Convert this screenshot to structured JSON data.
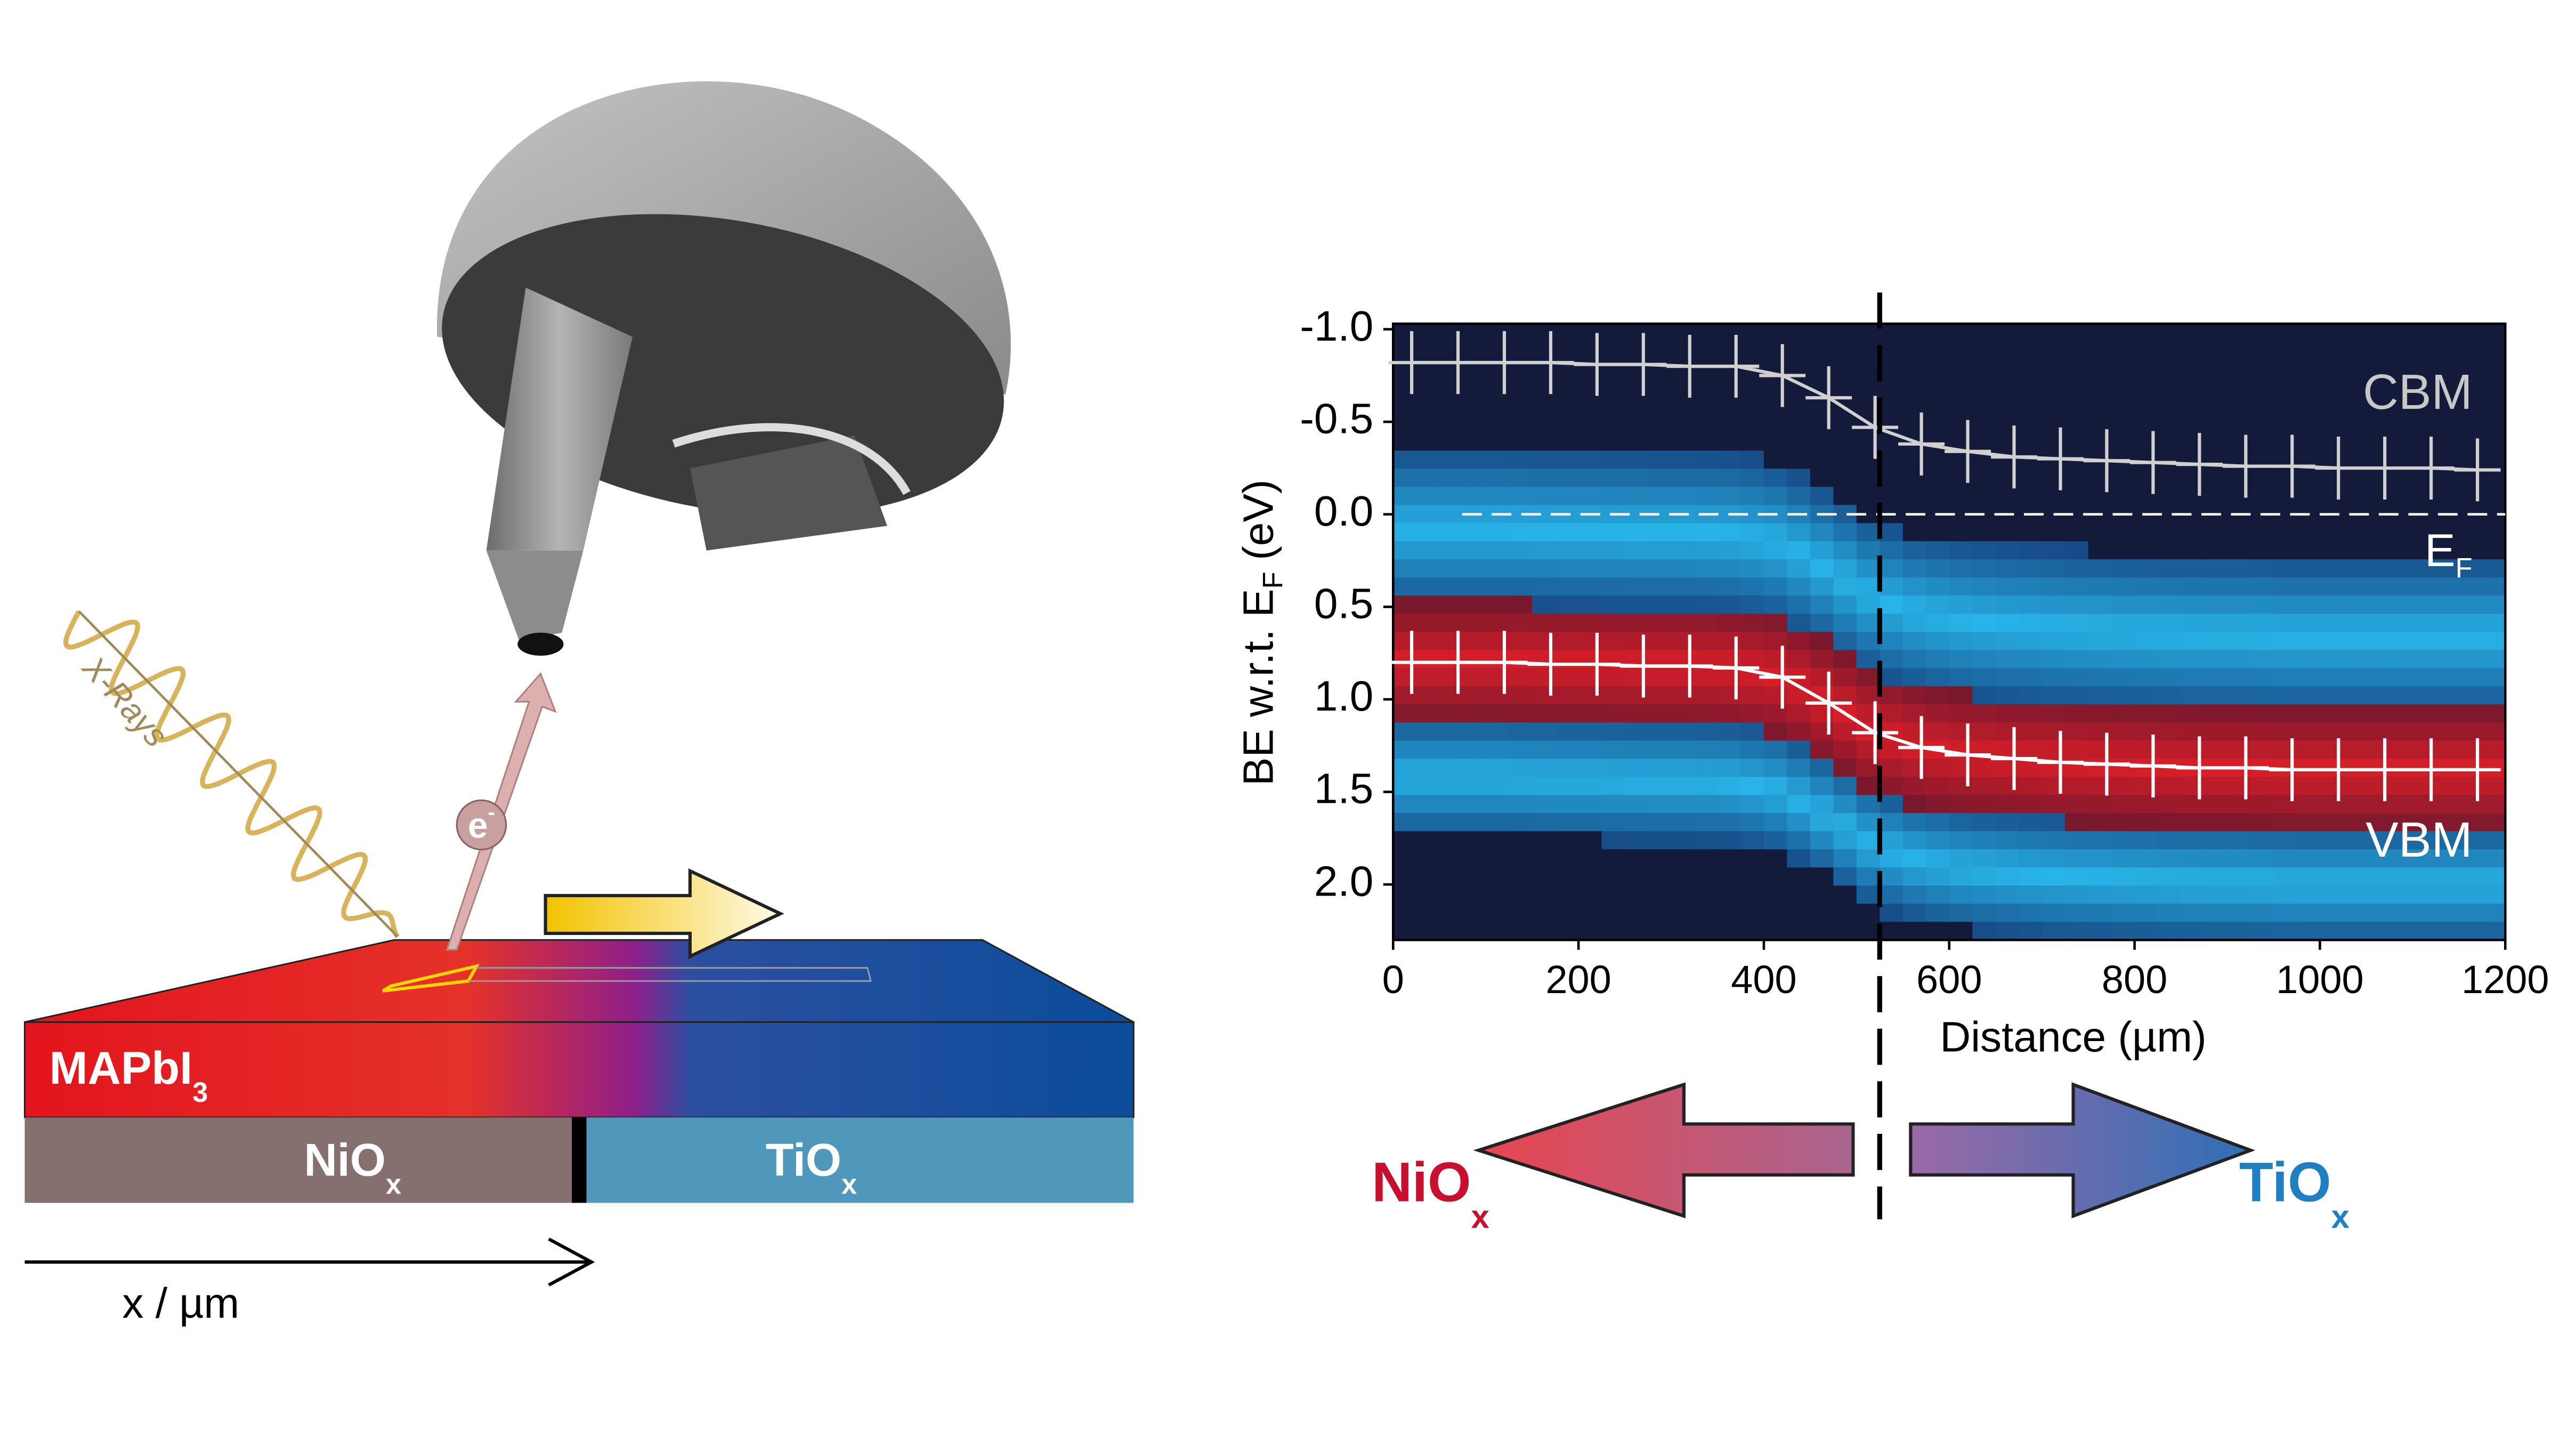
{
  "chart_data": {
    "type": "line",
    "xlabel": "Distance (µm)",
    "ylabel": {
      "text": "BE w.r.t. E",
      "subscript": "F",
      "suffix": "(eV)"
    },
    "x": [
      20,
      70,
      120,
      170,
      220,
      270,
      320,
      370,
      420,
      470,
      520,
      570,
      620,
      670,
      720,
      770,
      820,
      870,
      920,
      970,
      1020,
      1070,
      1120,
      1170
    ],
    "series": [
      {
        "name": "CBM",
        "color": "#d0d0d0",
        "yerr": 0.17,
        "values": [
          -0.82,
          -0.82,
          -0.82,
          -0.82,
          -0.81,
          -0.81,
          -0.8,
          -0.8,
          -0.75,
          -0.63,
          -0.47,
          -0.38,
          -0.34,
          -0.31,
          -0.3,
          -0.29,
          -0.28,
          -0.27,
          -0.26,
          -0.26,
          -0.25,
          -0.25,
          -0.25,
          -0.24
        ]
      },
      {
        "name": "VBM",
        "color": "#ffffff",
        "yerr": 0.17,
        "values": [
          0.8,
          0.8,
          0.8,
          0.81,
          0.81,
          0.82,
          0.82,
          0.83,
          0.88,
          1.02,
          1.18,
          1.26,
          1.3,
          1.32,
          1.34,
          1.35,
          1.36,
          1.37,
          1.37,
          1.38,
          1.38,
          1.38,
          1.38,
          1.38
        ]
      }
    ],
    "xerr": 25,
    "xlim": [
      0,
      1200
    ],
    "xticks": [
      0,
      200,
      400,
      600,
      800,
      1000,
      1200
    ],
    "ylim": [
      -1.03,
      2.3
    ],
    "y_inverted": true,
    "yticks": [
      {
        "value": -1,
        "label": "-1.0"
      },
      -0.5,
      {
        "value": 0,
        "label": "0.0"
      },
      0.5,
      {
        "value": 1,
        "label": "1.0"
      },
      1.5,
      {
        "value": 2,
        "label": "2.0"
      }
    ],
    "fermi_level": {
      "label": "E",
      "subscript": "F",
      "value": 0
    },
    "interface_x": 525,
    "arrows": [
      {
        "label": "NiO",
        "subscript": "x",
        "color": "#c8102e"
      },
      {
        "label": "TiO",
        "subscript": "x",
        "color": "#1f7fc0"
      }
    ]
  },
  "diagram": {
    "xray_label": "X-Rays",
    "electron": {
      "label": "e",
      "superscript": "-"
    },
    "perovskite": {
      "label": "MAPbI",
      "subscript": "3"
    },
    "layers": [
      {
        "label": "NiO",
        "subscript": "x"
      },
      {
        "label": "TiO",
        "subscript": "x"
      }
    ],
    "axis_label": "x / µm"
  }
}
